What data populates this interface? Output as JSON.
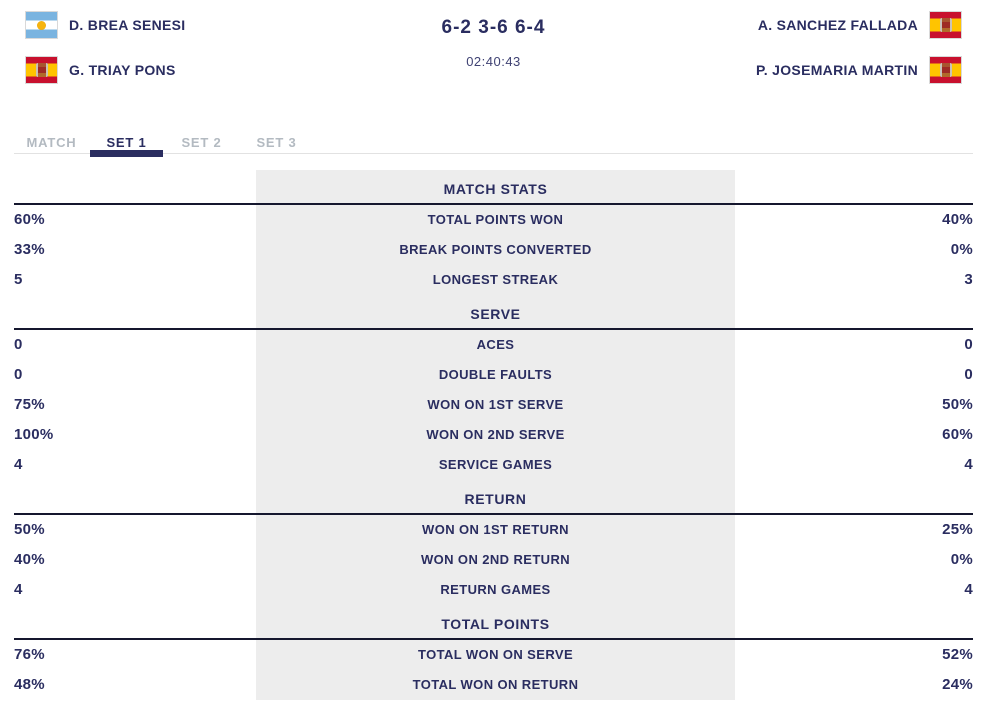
{
  "header": {
    "team_left": {
      "players": [
        {
          "name": "D. BREA SENESI",
          "flag": "argentina"
        },
        {
          "name": "G. TRIAY PONS",
          "flag": "spain"
        }
      ]
    },
    "team_right": {
      "players": [
        {
          "name": "A. SANCHEZ FALLADA",
          "flag": "spain"
        },
        {
          "name": "P. JOSEMARIA MARTIN",
          "flag": "spain"
        }
      ]
    },
    "score": "6-2 3-6 6-4",
    "duration": "02:40:43"
  },
  "tabs": [
    {
      "label": "MATCH",
      "active": false
    },
    {
      "label": "SET 1",
      "active": true
    },
    {
      "label": "SET 2",
      "active": false
    },
    {
      "label": "SET 3",
      "active": false
    }
  ],
  "stats_sections": [
    {
      "title": "MATCH STATS",
      "rows": [
        {
          "left": "60%",
          "label": "TOTAL POINTS WON",
          "right": "40%"
        },
        {
          "left": "33%",
          "label": "BREAK POINTS CONVERTED",
          "right": "0%"
        },
        {
          "left": "5",
          "label": "LONGEST STREAK",
          "right": "3"
        }
      ]
    },
    {
      "title": "SERVE",
      "rows": [
        {
          "left": "0",
          "label": "ACES",
          "right": "0"
        },
        {
          "left": "0",
          "label": "DOUBLE FAULTS",
          "right": "0"
        },
        {
          "left": "75%",
          "label": "WON ON 1ST SERVE",
          "right": "50%"
        },
        {
          "left": "100%",
          "label": "WON ON 2ND SERVE",
          "right": "60%"
        },
        {
          "left": "4",
          "label": "SERVICE GAMES",
          "right": "4"
        }
      ]
    },
    {
      "title": "RETURN",
      "rows": [
        {
          "left": "50%",
          "label": "WON ON 1ST RETURN",
          "right": "25%"
        },
        {
          "left": "40%",
          "label": "WON ON 2ND RETURN",
          "right": "0%"
        },
        {
          "left": "4",
          "label": "RETURN GAMES",
          "right": "4"
        }
      ]
    },
    {
      "title": "TOTAL POINTS",
      "rows": [
        {
          "left": "76%",
          "label": "TOTAL WON ON SERVE",
          "right": "52%"
        },
        {
          "left": "48%",
          "label": "TOTAL WON ON RETURN",
          "right": "24%"
        }
      ]
    }
  ],
  "colors": {
    "navy": "#2a2d60",
    "tab_inactive": "#b3bac1",
    "panel": "#ededed",
    "rule": "#15172e",
    "line": "#e2e2e2"
  },
  "icons": {
    "argentina": "argentina-flag-icon",
    "spain": "spain-flag-icon"
  }
}
